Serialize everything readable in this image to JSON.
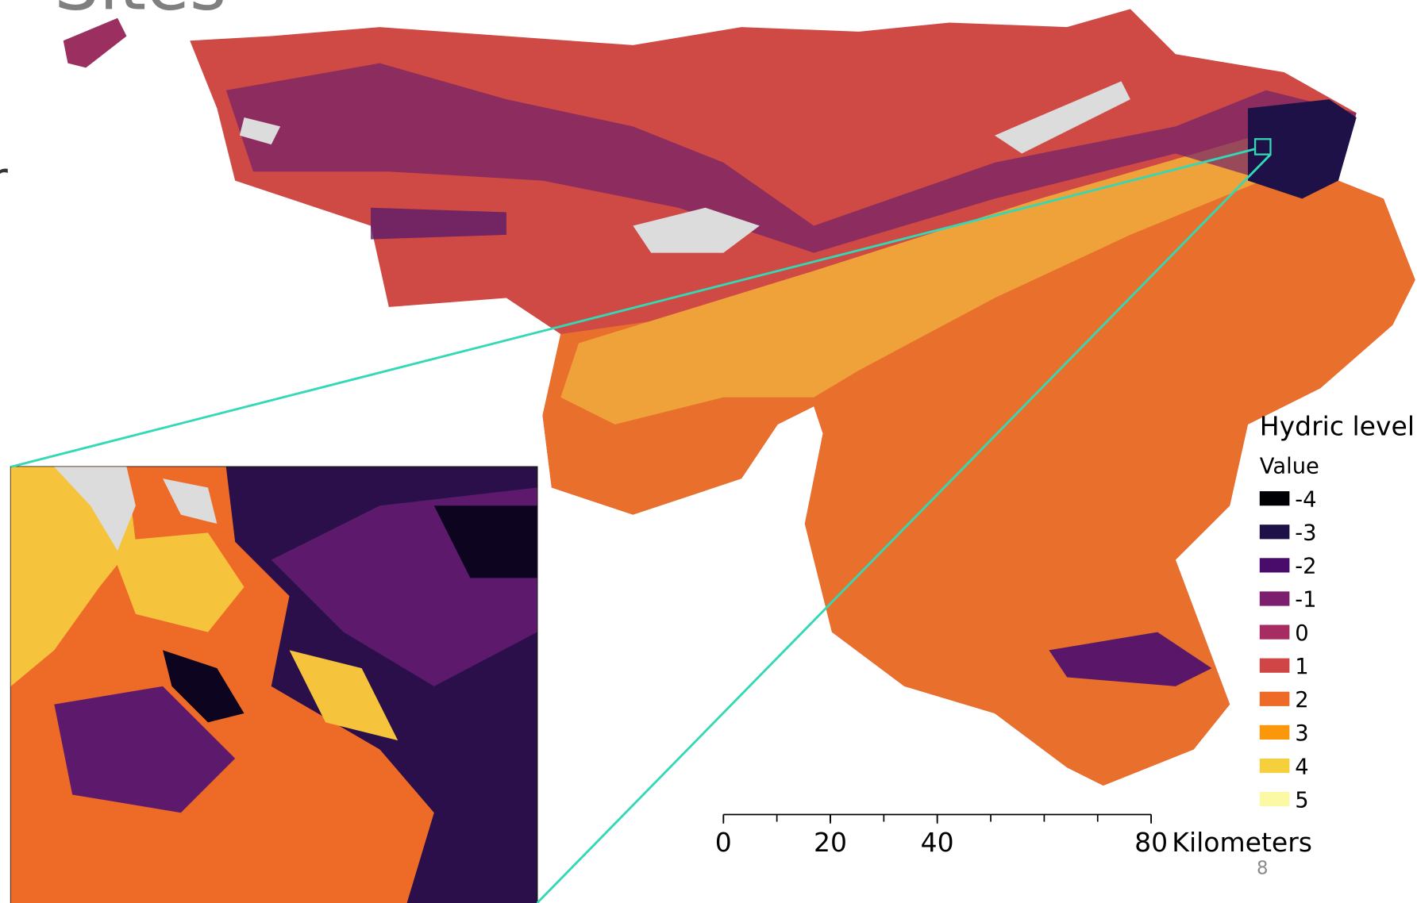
{
  "header": {
    "title": "Sites",
    "side_text": "r"
  },
  "legend": {
    "title": "Hydric level",
    "subtitle": "Value",
    "items": [
      {
        "label": "-4",
        "color": "#000004"
      },
      {
        "label": "-3",
        "color": "#1d1147"
      },
      {
        "label": "-2",
        "color": "#4a0c6b"
      },
      {
        "label": "-1",
        "color": "#7b1f6e"
      },
      {
        "label": "0",
        "color": "#a62c62"
      },
      {
        "label": "1",
        "color": "#d04545"
      },
      {
        "label": "2",
        "color": "#ee6b27"
      },
      {
        "label": "3",
        "color": "#fb970a"
      },
      {
        "label": "4",
        "color": "#f5d03c"
      },
      {
        "label": "5",
        "color": "#fbf9a3"
      }
    ]
  },
  "scale_bar": {
    "ticks": [
      0,
      20,
      40,
      80
    ],
    "unit": "Kilometers"
  },
  "footer": {
    "page_number": "8"
  }
}
